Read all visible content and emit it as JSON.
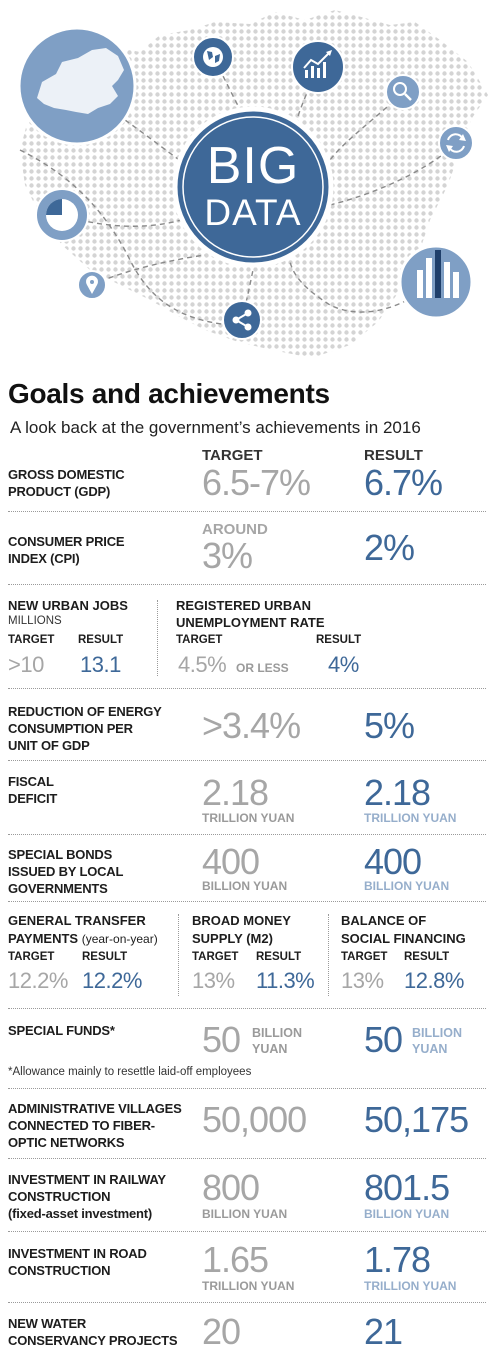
{
  "hero": {
    "badge_line1": "BIG",
    "badge_line2": "DATA",
    "icons": [
      "globe-icon",
      "trend-chart-icon",
      "search-icon",
      "refresh-icon",
      "pie-chart-icon",
      "location-pin-icon",
      "share-icon",
      "bar-chart-icon"
    ]
  },
  "header": {
    "title": "Goals and achievements",
    "subtitle": "A look back at the government’s achievements in 2016",
    "col_target": "TARGET",
    "col_result": "RESULT"
  },
  "colors": {
    "accent_blue": "#3e6898",
    "light_blue": "#96aecb",
    "target_gray": "#a6a6a6",
    "hero_blue": "#7f9fc5",
    "dots": "#d4d4d4"
  },
  "rows": {
    "gdp": {
      "label_1": "GROSS DOMESTIC",
      "label_2": "PRODUCT (GDP)",
      "target": "6.5-7%",
      "result": "6.7%"
    },
    "cpi": {
      "label_1": "CONSUMER PRICE",
      "label_2": "INDEX (CPI)",
      "target_prefix": "AROUND",
      "target": "3%",
      "result": "2%"
    },
    "jobs": {
      "head": "NEW URBAN JOBS",
      "sub": "MILLIONS",
      "target_label": "TARGET",
      "result_label": "RESULT",
      "target": ">10",
      "result": "13.1",
      "u_head_1": "REGISTERED URBAN",
      "u_head_2": "UNEMPLOYMENT RATE",
      "u_target_label": "TARGET",
      "u_result_label": "RESULT",
      "u_target": "4.5%",
      "u_target_suffix": "OR LESS",
      "u_result": "4%"
    },
    "energy": {
      "label_1": "REDUCTION OF ENERGY",
      "label_2": "CONSUMPTION PER",
      "label_3": "UNIT OF GDP",
      "target": ">3.4%",
      "result": "5%"
    },
    "deficit": {
      "label_1": "FISCAL",
      "label_2": "DEFICIT",
      "target": "2.18",
      "target_unit": "TRILLION YUAN",
      "result": "2.18",
      "result_unit": "TRILLION YUAN"
    },
    "bonds": {
      "label_1": "SPECIAL BONDS",
      "label_2": "ISSUED BY LOCAL",
      "label_3": "GOVERNMENTS",
      "target": "400",
      "target_unit": "BILLION YUAN",
      "result": "400",
      "result_unit": "BILLION YUAN"
    },
    "transfer": {
      "head_1": "GENERAL TRANSFER",
      "head_2": "PAYMENTS",
      "head_2_note": "(year-on-year)",
      "target_label": "TARGET",
      "result_label": "RESULT",
      "target": "12.2%",
      "result": "12.2%",
      "m2_head_1": "BROAD MONEY",
      "m2_head_2": "SUPPLY (M2)",
      "m2_target_label": "TARGET",
      "m2_result_label": "RESULT",
      "m2_target": "13%",
      "m2_result": "11.3%",
      "sf_head_1": "BALANCE OF",
      "sf_head_2": "SOCIAL FINANCING",
      "sf_target_label": "TARGET",
      "sf_result_label": "RESULT",
      "sf_target": "13%",
      "sf_result": "12.8%"
    },
    "funds": {
      "label_1": "SPECIAL FUNDS*",
      "target": "50",
      "target_unit_1": "BILLION",
      "target_unit_2": "YUAN",
      "result": "50",
      "result_unit_1": "BILLION",
      "result_unit_2": "YUAN",
      "note": "*Allowance mainly to resettle laid-off employees"
    },
    "villages": {
      "label_1": "ADMINISTRATIVE VILLAGES",
      "label_2": "CONNECTED TO FIBER-",
      "label_3": "OPTIC NETWORKS",
      "target": "50,000",
      "result": "50,175"
    },
    "railway": {
      "label_1": "INVESTMENT IN RAILWAY",
      "label_2": "CONSTRUCTION",
      "label_3": "(fixed-asset investment)",
      "target": "800",
      "target_unit": "BILLION YUAN",
      "result": "801.5",
      "result_unit": "BILLION YUAN"
    },
    "road": {
      "label_1": "INVESTMENT IN ROAD",
      "label_2": "CONSTRUCTION",
      "target": "1.65",
      "target_unit": "TRILLION YUAN",
      "result": "1.78",
      "result_unit": "TRILLION YUAN"
    },
    "water": {
      "label_1": "NEW WATER",
      "label_2": "CONSERVANCY PROJECTS",
      "target": "20",
      "result": "21"
    }
  },
  "chart_data": {
    "type": "table",
    "title": "Goals and achievements",
    "subtitle": "A look back at the government’s achievements in 2016",
    "columns": [
      "TARGET",
      "RESULT"
    ],
    "rows": [
      {
        "indicator": "GROSS DOMESTIC PRODUCT (GDP)",
        "target": "6.5-7%",
        "result": "6.7%"
      },
      {
        "indicator": "CONSUMER PRICE INDEX (CPI)",
        "target": "AROUND 3%",
        "result": "2%"
      },
      {
        "indicator": "NEW URBAN JOBS (MILLIONS)",
        "target": ">10",
        "result": "13.1"
      },
      {
        "indicator": "REGISTERED URBAN UNEMPLOYMENT RATE",
        "target": "4.5% OR LESS",
        "result": "4%"
      },
      {
        "indicator": "REDUCTION OF ENERGY CONSUMPTION PER UNIT OF GDP",
        "target": ">3.4%",
        "result": "5%"
      },
      {
        "indicator": "FISCAL DEFICIT",
        "target": "2.18 TRILLION YUAN",
        "result": "2.18 TRILLION YUAN"
      },
      {
        "indicator": "SPECIAL BONDS ISSUED BY LOCAL GOVERNMENTS",
        "target": "400 BILLION YUAN",
        "result": "400 BILLION YUAN"
      },
      {
        "indicator": "GENERAL TRANSFER PAYMENTS (year-on-year)",
        "target": "12.2%",
        "result": "12.2%"
      },
      {
        "indicator": "BROAD MONEY SUPPLY (M2)",
        "target": "13%",
        "result": "11.3%"
      },
      {
        "indicator": "BALANCE OF SOCIAL FINANCING",
        "target": "13%",
        "result": "12.8%"
      },
      {
        "indicator": "SPECIAL FUNDS*",
        "target": "50 BILLION YUAN",
        "result": "50 BILLION YUAN"
      },
      {
        "indicator": "ADMINISTRATIVE VILLAGES CONNECTED TO FIBER-OPTIC NETWORKS",
        "target": "50,000",
        "result": "50,175"
      },
      {
        "indicator": "INVESTMENT IN RAILWAY CONSTRUCTION (fixed-asset investment)",
        "target": "800 BILLION YUAN",
        "result": "801.5 BILLION YUAN"
      },
      {
        "indicator": "INVESTMENT IN ROAD CONSTRUCTION",
        "target": "1.65 TRILLION YUAN",
        "result": "1.78 TRILLION YUAN"
      },
      {
        "indicator": "NEW WATER CONSERVANCY PROJECTS",
        "target": "20",
        "result": "21"
      }
    ]
  }
}
